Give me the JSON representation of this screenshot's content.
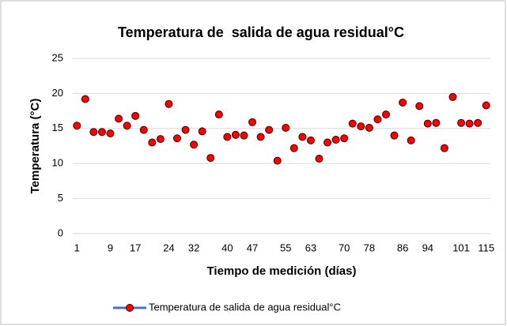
{
  "chart_data": {
    "type": "line",
    "title": "Temperatura de  salida de agua residual°C",
    "x_label": "Tiempo de medición (días)",
    "y_label": "Temperatura (°C)",
    "categories": [
      "1",
      null,
      null,
      null,
      "9",
      null,
      null,
      "17",
      null,
      null,
      null,
      "24",
      null,
      null,
      "32",
      null,
      null,
      null,
      "40",
      null,
      null,
      "47",
      null,
      null,
      null,
      "55",
      null,
      null,
      "63",
      null,
      null,
      null,
      "70",
      null,
      null,
      "78",
      null,
      null,
      null,
      "86",
      null,
      null,
      "94",
      null,
      null,
      null,
      "101",
      null,
      null,
      "115"
    ],
    "series": [
      {
        "name": "Temperatura de salida de agua residual°C",
        "color": "#4472c4",
        "marker_color": "#ff0000",
        "values": [
          15.4,
          19.2,
          14.5,
          14.5,
          14.3,
          16.4,
          15.4,
          16.8,
          14.8,
          13.0,
          13.5,
          18.5,
          13.6,
          14.8,
          12.7,
          14.6,
          10.8,
          17.0,
          13.8,
          14.1,
          14.0,
          15.9,
          13.8,
          14.8,
          10.4,
          15.1,
          12.2,
          13.8,
          13.3,
          10.7,
          13.0,
          13.4,
          13.6,
          15.7,
          15.3,
          15.1,
          16.3,
          17.0,
          14.0,
          18.7,
          13.3,
          18.2,
          15.7,
          15.8,
          12.2,
          19.5,
          15.8,
          15.7,
          15.8,
          18.3
        ]
      }
    ],
    "show_line": false,
    "ylim": [
      0,
      25
    ],
    "yticks": [
      0,
      5,
      10,
      15,
      20,
      25
    ],
    "grid": true,
    "legend": "bottom"
  }
}
